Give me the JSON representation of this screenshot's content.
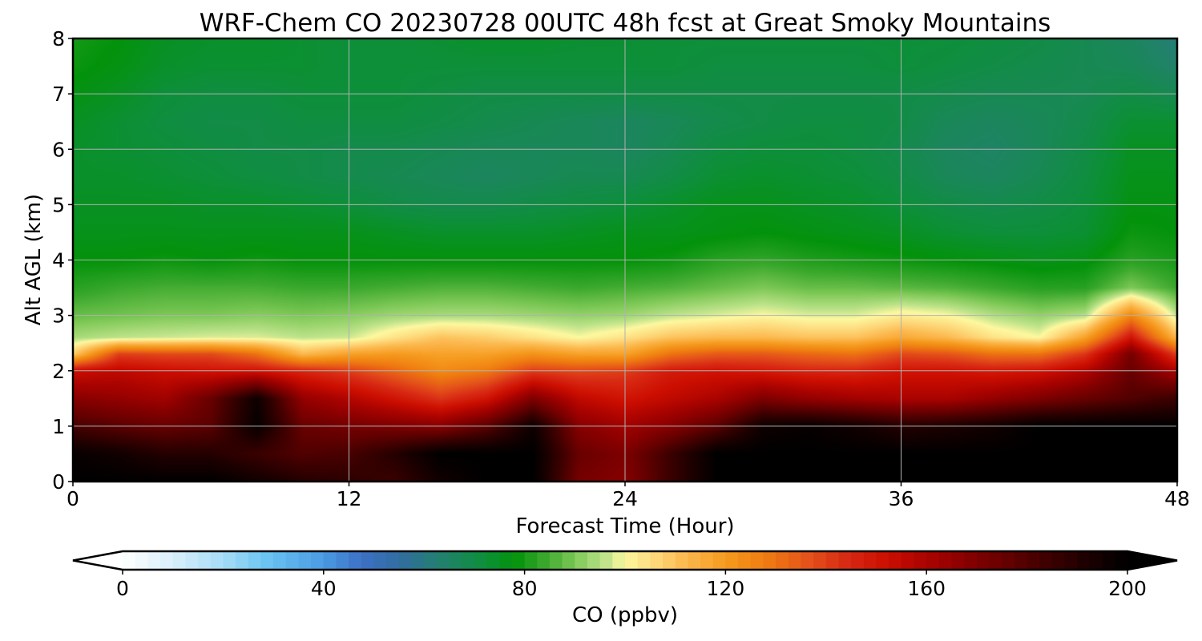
{
  "chart_data": {
    "type": "heatmap",
    "title": "WRF-Chem CO  20230728 00UTC 48h fcst at Great Smoky Mountains",
    "xlabel": "Forecast Time (Hour)",
    "ylabel": "Alt AGL (km)",
    "xlim": [
      0,
      48
    ],
    "ylim": [
      0,
      8
    ],
    "xticks": [
      0,
      12,
      24,
      36,
      48
    ],
    "yticks": [
      0,
      1,
      2,
      3,
      4,
      5,
      6,
      7,
      8
    ],
    "grid": true,
    "x": [
      0,
      2,
      4,
      6,
      8,
      10,
      12,
      14,
      16,
      18,
      20,
      22,
      24,
      26,
      28,
      30,
      32,
      34,
      36,
      38,
      40,
      42,
      44,
      46,
      48
    ],
    "y": [
      0,
      0.5,
      1,
      1.5,
      2,
      2.3,
      2.6,
      3,
      3.5,
      4,
      4.5,
      5,
      5.5,
      6,
      6.5,
      7,
      7.5,
      8
    ],
    "z": [
      [
        200,
        200,
        200,
        200,
        195,
        190,
        188,
        185,
        195,
        200,
        200,
        172,
        168,
        185,
        200,
        200,
        200,
        200,
        200,
        200,
        200,
        200,
        200,
        200,
        200
      ],
      [
        198,
        195,
        190,
        190,
        185,
        180,
        182,
        190,
        200,
        200,
        200,
        175,
        170,
        185,
        200,
        200,
        200,
        200,
        200,
        200,
        200,
        200,
        200,
        200,
        200
      ],
      [
        182,
        178,
        175,
        178,
        198,
        175,
        172,
        170,
        168,
        178,
        196,
        168,
        162,
        168,
        178,
        196,
        198,
        195,
        190,
        192,
        195,
        200,
        200,
        200,
        200
      ],
      [
        168,
        165,
        162,
        175,
        196,
        165,
        158,
        150,
        142,
        150,
        170,
        155,
        150,
        155,
        160,
        170,
        165,
        162,
        160,
        160,
        165,
        170,
        175,
        180,
        185
      ],
      [
        152,
        155,
        152,
        150,
        150,
        145,
        140,
        132,
        124,
        128,
        140,
        138,
        140,
        148,
        150,
        148,
        145,
        145,
        150,
        150,
        148,
        150,
        158,
        175,
        160
      ],
      [
        108,
        140,
        138,
        138,
        130,
        112,
        118,
        120,
        118,
        118,
        122,
        118,
        118,
        130,
        135,
        135,
        132,
        130,
        138,
        136,
        130,
        130,
        142,
        172,
        140
      ],
      [
        94,
        96,
        97,
        98,
        98,
        96,
        97,
        104,
        110,
        108,
        104,
        100,
        104,
        110,
        112,
        112,
        110,
        110,
        116,
        112,
        104,
        100,
        118,
        150,
        112
      ],
      [
        88,
        89,
        90,
        90,
        91,
        90,
        91,
        93,
        94,
        94,
        93,
        92,
        93,
        96,
        98,
        100,
        98,
        98,
        102,
        100,
        95,
        92,
        95,
        125,
        96
      ],
      [
        82,
        84,
        85,
        85,
        85,
        84,
        84,
        85,
        86,
        86,
        85,
        84,
        85,
        86,
        88,
        90,
        88,
        88,
        87,
        86,
        84,
        82,
        82,
        90,
        84
      ],
      [
        78,
        78,
        79,
        78,
        79,
        78,
        78,
        78,
        78,
        78,
        78,
        78,
        78,
        79,
        82,
        83,
        81,
        80,
        79,
        78,
        77,
        76,
        77,
        82,
        80
      ],
      [
        76,
        76,
        76,
        76,
        76,
        76,
        76,
        75,
        74,
        74,
        74,
        75,
        76,
        76,
        77,
        78,
        77,
        76,
        75,
        73,
        72,
        72,
        73,
        79,
        78
      ],
      [
        75,
        75,
        75,
        74,
        74,
        73,
        72,
        70,
        69,
        69,
        70,
        71,
        72,
        74,
        76,
        76,
        75,
        74,
        72,
        70,
        69,
        70,
        72,
        77,
        77
      ],
      [
        74,
        74,
        73,
        72,
        71,
        70,
        69,
        68,
        67,
        66,
        67,
        68,
        68,
        70,
        73,
        74,
        73,
        72,
        70,
        67,
        66,
        68,
        71,
        76,
        76
      ],
      [
        74,
        73,
        72,
        71,
        70,
        70,
        69,
        69,
        68,
        67,
        67,
        67,
        66,
        68,
        71,
        72,
        72,
        71,
        69,
        66,
        65,
        67,
        70,
        75,
        75
      ],
      [
        75,
        73,
        71,
        70,
        70,
        71,
        71,
        71,
        70,
        69,
        68,
        67,
        66,
        67,
        69,
        70,
        71,
        71,
        70,
        67,
        66,
        67,
        69,
        73,
        73
      ],
      [
        77,
        75,
        72,
        71,
        71,
        72,
        72,
        72,
        71,
        70,
        70,
        70,
        70,
        70,
        70,
        70,
        70,
        70,
        70,
        69,
        68,
        68,
        68,
        70,
        68
      ],
      [
        79,
        77,
        74,
        73,
        73,
        73,
        72,
        72,
        72,
        72,
        72,
        72,
        72,
        72,
        71,
        71,
        71,
        71,
        72,
        71,
        70,
        69,
        68,
        67,
        64
      ],
      [
        80,
        78,
        75,
        74,
        74,
        73,
        72,
        72,
        73,
        74,
        74,
        73,
        73,
        72,
        72,
        72,
        72,
        72,
        72,
        72,
        71,
        70,
        68,
        66,
        62
      ]
    ],
    "colorbar": {
      "label": "CO  (ppbv)",
      "range": [
        0,
        200
      ],
      "ticks": [
        0,
        40,
        80,
        120,
        160,
        200
      ],
      "extend": "both",
      "orientation": "horizontal",
      "colors": [
        [
          0,
          "#ffffff"
        ],
        [
          10,
          "#d9eefa"
        ],
        [
          20,
          "#a6dcf6"
        ],
        [
          28,
          "#6cc6f2"
        ],
        [
          40,
          "#4a9ae2"
        ],
        [
          48,
          "#3c6fc4"
        ],
        [
          56,
          "#2f6e9a"
        ],
        [
          64,
          "#21826a"
        ],
        [
          72,
          "#0d8f3a"
        ],
        [
          78,
          "#03920b"
        ],
        [
          84,
          "#3aa82c"
        ],
        [
          90,
          "#7dc856"
        ],
        [
          96,
          "#bde38a"
        ],
        [
          100,
          "#fdf8a0"
        ],
        [
          106,
          "#fdd87a"
        ],
        [
          112,
          "#fcb84e"
        ],
        [
          120,
          "#f59a1e"
        ],
        [
          128,
          "#ef7c10"
        ],
        [
          136,
          "#e5541a"
        ],
        [
          144,
          "#d82a14"
        ],
        [
          152,
          "#cc0e00"
        ],
        [
          160,
          "#aa0300"
        ],
        [
          168,
          "#870000"
        ],
        [
          176,
          "#640000"
        ],
        [
          184,
          "#3e0000"
        ],
        [
          192,
          "#1c0000"
        ],
        [
          200,
          "#000000"
        ]
      ]
    }
  }
}
